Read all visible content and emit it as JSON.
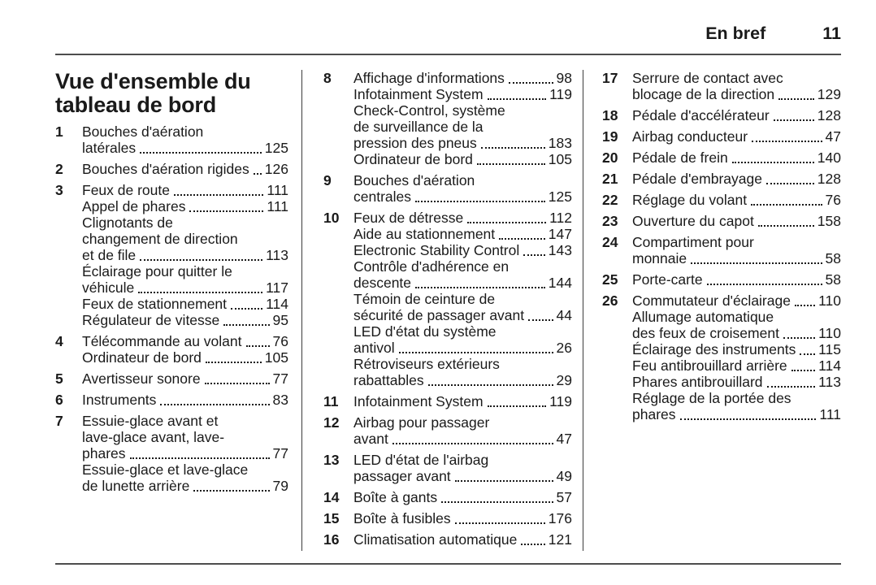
{
  "header": {
    "section_title": "En bref",
    "page_number": "11"
  },
  "columns": [
    {
      "heading": "Vue d'ensemble du\ntableau de bord",
      "items": [
        {
          "num": "1",
          "entries": [
            {
              "pre": [
                "Bouches d'aération"
              ],
              "text": "latérales",
              "page": "125"
            }
          ]
        },
        {
          "num": "2",
          "entries": [
            {
              "pre": [],
              "text": "Bouches d'aération rigides",
              "page": "126"
            }
          ]
        },
        {
          "num": "3",
          "entries": [
            {
              "pre": [],
              "text": "Feux de route",
              "page": "111"
            },
            {
              "pre": [],
              "text": "Appel de phares",
              "page": "111"
            },
            {
              "pre": [
                "Clignotants de",
                "changement de direction"
              ],
              "text": "et de file",
              "page": "113"
            },
            {
              "pre": [
                "Éclairage pour quitter le"
              ],
              "text": "véhicule",
              "page": "117"
            },
            {
              "pre": [],
              "text": "Feux de stationnement",
              "page": "114"
            },
            {
              "pre": [],
              "text": "Régulateur de vitesse",
              "page": "95"
            }
          ]
        },
        {
          "num": "4",
          "entries": [
            {
              "pre": [],
              "text": "Télécommande au volant",
              "page": "76"
            },
            {
              "pre": [],
              "text": "Ordinateur de bord",
              "page": "105"
            }
          ]
        },
        {
          "num": "5",
          "entries": [
            {
              "pre": [],
              "text": "Avertisseur sonore",
              "page": "77"
            }
          ]
        },
        {
          "num": "6",
          "entries": [
            {
              "pre": [],
              "text": "Instruments",
              "page": "83"
            }
          ]
        },
        {
          "num": "7",
          "entries": [
            {
              "pre": [
                "Essuie-glace avant et",
                "lave-glace avant, lave-"
              ],
              "text": "phares",
              "page": "77"
            },
            {
              "pre": [
                "Essuie-glace et lave-glace"
              ],
              "text": "de lunette arrière",
              "page": "79"
            }
          ]
        }
      ]
    },
    {
      "heading": null,
      "items": [
        {
          "num": "8",
          "entries": [
            {
              "pre": [],
              "text": "Affichage d'informations",
              "page": "98"
            },
            {
              "pre": [],
              "text": "Infotainment System",
              "page": "119"
            },
            {
              "pre": [
                "Check-Control, système",
                "de surveillance de la"
              ],
              "text": "pression des pneus",
              "page": "183"
            },
            {
              "pre": [],
              "text": "Ordinateur de bord",
              "page": "105"
            }
          ]
        },
        {
          "num": "9",
          "entries": [
            {
              "pre": [
                "Bouches d'aération"
              ],
              "text": "centrales",
              "page": "125"
            }
          ]
        },
        {
          "num": "10",
          "entries": [
            {
              "pre": [],
              "text": "Feux de détresse",
              "page": "112"
            },
            {
              "pre": [],
              "text": "Aide au stationnement",
              "page": "147"
            },
            {
              "pre": [],
              "text": "Electronic Stability Control",
              "page": "143"
            },
            {
              "pre": [
                "Contrôle d'adhérence en"
              ],
              "text": "descente",
              "page": "144"
            },
            {
              "pre": [
                "Témoin de ceinture de"
              ],
              "text": "sécurité de passager avant",
              "page": "44"
            },
            {
              "pre": [
                "LED d'état du système"
              ],
              "text": "antivol",
              "page": "26"
            },
            {
              "pre": [
                "Rétroviseurs extérieurs"
              ],
              "text": "rabattables",
              "page": "29"
            }
          ]
        },
        {
          "num": "11",
          "entries": [
            {
              "pre": [],
              "text": "Infotainment System",
              "page": "119"
            }
          ]
        },
        {
          "num": "12",
          "entries": [
            {
              "pre": [
                "Airbag pour passager"
              ],
              "text": "avant",
              "page": "47"
            }
          ]
        },
        {
          "num": "13",
          "entries": [
            {
              "pre": [
                "LED d'état de l'airbag"
              ],
              "text": "passager avant",
              "page": "49"
            }
          ]
        },
        {
          "num": "14",
          "entries": [
            {
              "pre": [],
              "text": "Boîte à gants",
              "page": "57"
            }
          ]
        },
        {
          "num": "15",
          "entries": [
            {
              "pre": [],
              "text": "Boîte à fusibles",
              "page": "176"
            }
          ]
        },
        {
          "num": "16",
          "entries": [
            {
              "pre": [],
              "text": "Climatisation automatique",
              "page": "121"
            }
          ]
        }
      ]
    },
    {
      "heading": null,
      "items": [
        {
          "num": "17",
          "entries": [
            {
              "pre": [
                "Serrure de contact avec"
              ],
              "text": "blocage de la direction",
              "page": "129"
            }
          ]
        },
        {
          "num": "18",
          "entries": [
            {
              "pre": [],
              "text": "Pédale d'accélérateur",
              "page": "128"
            }
          ]
        },
        {
          "num": "19",
          "entries": [
            {
              "pre": [],
              "text": "Airbag conducteur",
              "page": "47"
            }
          ]
        },
        {
          "num": "20",
          "entries": [
            {
              "pre": [],
              "text": "Pédale de frein",
              "page": "140"
            }
          ]
        },
        {
          "num": "21",
          "entries": [
            {
              "pre": [],
              "text": "Pédale d'embrayage",
              "page": "128"
            }
          ]
        },
        {
          "num": "22",
          "entries": [
            {
              "pre": [],
              "text": "Réglage du volant",
              "page": "76"
            }
          ]
        },
        {
          "num": "23",
          "entries": [
            {
              "pre": [],
              "text": "Ouverture du capot",
              "page": "158"
            }
          ]
        },
        {
          "num": "24",
          "entries": [
            {
              "pre": [
                "Compartiment pour"
              ],
              "text": "monnaie",
              "page": "58"
            }
          ]
        },
        {
          "num": "25",
          "entries": [
            {
              "pre": [],
              "text": "Porte-carte",
              "page": "58"
            }
          ]
        },
        {
          "num": "26",
          "entries": [
            {
              "pre": [],
              "text": "Commutateur d'éclairage",
              "page": "110"
            },
            {
              "pre": [
                "Allumage automatique"
              ],
              "text": "des feux de croisement",
              "page": "110"
            },
            {
              "pre": [],
              "text": "Éclairage des instruments",
              "page": "115"
            },
            {
              "pre": [],
              "text": "Feu antibrouillard arrière",
              "page": "114"
            },
            {
              "pre": [],
              "text": "Phares antibrouillard",
              "page": "113"
            },
            {
              "pre": [
                "Réglage de la portée des"
              ],
              "text": "phares",
              "page": "111"
            }
          ]
        }
      ]
    }
  ]
}
